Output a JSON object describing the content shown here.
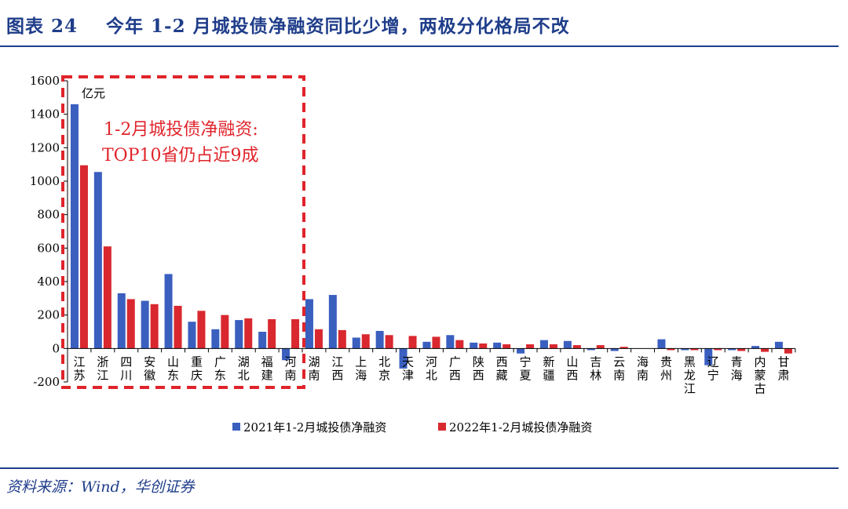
{
  "figure": {
    "label": "图表 24",
    "title": "今年 1-2 月城投债净融资同比少增，两极分化格局不改",
    "source": "资料来源：Wind，华创证券"
  },
  "annotation": {
    "line1": "1-2月城投债净融资:",
    "line2": "TOP10省仍占近9成"
  },
  "colors": {
    "series_2021": "#3a5fbf",
    "series_2022": "#d9282f",
    "title": "#1f3d8a",
    "annotation": "#e0242b"
  },
  "chart_data": {
    "type": "bar",
    "unit_label": "亿元",
    "ylim": [
      -200,
      1600
    ],
    "yticks": [
      -200,
      0,
      200,
      400,
      600,
      800,
      1000,
      1200,
      1400,
      1600
    ],
    "categories": [
      "江苏",
      "浙江",
      "四川",
      "安徽",
      "山东",
      "重庆",
      "广东",
      "湖北",
      "福建",
      "河南",
      "湖南",
      "江西",
      "上海",
      "北京",
      "天津",
      "河北",
      "广西",
      "陕西",
      "西藏",
      "宁夏",
      "新疆",
      "山西",
      "吉林",
      "云南",
      "海南",
      "贵州",
      "黑龙江",
      "辽宁",
      "青海",
      "内蒙古",
      "甘肃"
    ],
    "series": [
      {
        "name": "2021年1-2月城投债净融资",
        "values": [
          1460,
          1055,
          330,
          285,
          445,
          160,
          115,
          170,
          100,
          -70,
          295,
          320,
          65,
          105,
          -120,
          40,
          80,
          35,
          35,
          -30,
          50,
          45,
          -10,
          -15,
          0,
          55,
          -10,
          -100,
          -10,
          15,
          40
        ]
      },
      {
        "name": "2022年1-2月城投债净融资",
        "values": [
          1095,
          610,
          295,
          265,
          255,
          225,
          200,
          180,
          175,
          175,
          115,
          110,
          85,
          80,
          75,
          70,
          50,
          30,
          25,
          25,
          25,
          20,
          20,
          10,
          0,
          -10,
          -10,
          -10,
          -15,
          -20,
          -30
        ]
      }
    ]
  }
}
